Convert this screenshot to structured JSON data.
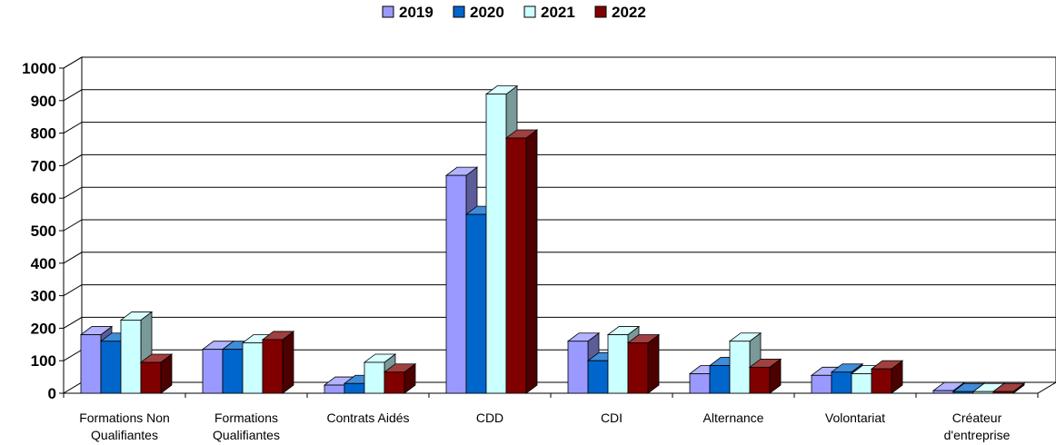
{
  "chart_data": {
    "type": "bar",
    "title": "",
    "xlabel": "",
    "ylabel": "",
    "ylim": [
      0,
      1000
    ],
    "yticks": [
      0,
      100,
      200,
      300,
      400,
      500,
      600,
      700,
      800,
      900,
      1000
    ],
    "grid": true,
    "legend_position": "top",
    "style": "3d-clustered-column",
    "categories": [
      [
        "Formations Non",
        "Qualifiantes"
      ],
      [
        "Formations",
        "Qualifiantes"
      ],
      [
        "Contrats Aidés"
      ],
      [
        "CDD"
      ],
      [
        "CDI"
      ],
      [
        "Alternance"
      ],
      [
        "Volontariat"
      ],
      [
        "Créateur",
        "d'entreprise"
      ]
    ],
    "series": [
      {
        "name": "2019",
        "color": "#9999ff",
        "values": [
          180,
          135,
          25,
          670,
          160,
          60,
          55,
          8
        ]
      },
      {
        "name": "2020",
        "color": "#0066cc",
        "values": [
          160,
          135,
          30,
          550,
          100,
          85,
          65,
          5
        ]
      },
      {
        "name": "2021",
        "color": "#ccffff",
        "values": [
          225,
          155,
          95,
          920,
          180,
          160,
          60,
          5
        ]
      },
      {
        "name": "2022",
        "color": "#800000",
        "values": [
          95,
          165,
          65,
          785,
          155,
          80,
          75,
          5
        ]
      }
    ]
  }
}
